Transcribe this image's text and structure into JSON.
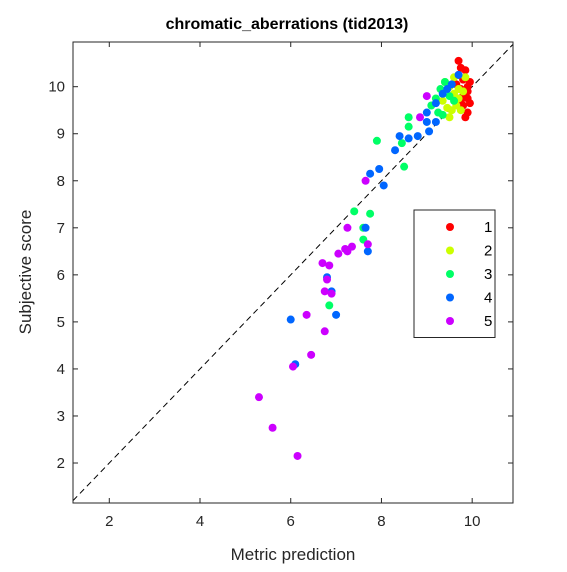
{
  "chart_data": {
    "type": "scatter",
    "title": "chromatic_aberrations (tid2013)",
    "xlabel": "Metric prediction",
    "ylabel": "Subjective score",
    "xlim": [
      1.2,
      10.9
    ],
    "ylim": [
      1.15,
      10.95
    ],
    "xticks": [
      2,
      4,
      6,
      8,
      10
    ],
    "yticks": [
      2,
      3,
      4,
      5,
      6,
      7,
      8,
      9,
      10
    ],
    "grid": false,
    "reference_line": {
      "style": "dashed",
      "from": [
        1.2,
        1.2
      ],
      "to": [
        10.9,
        10.9
      ]
    },
    "legend": {
      "position": "right-middle",
      "boxed": true
    },
    "series": [
      {
        "name": "1",
        "color": "#ff0000",
        "points": [
          [
            9.7,
            10.55
          ],
          [
            9.75,
            10.4
          ],
          [
            9.85,
            10.35
          ],
          [
            9.8,
            10.15
          ],
          [
            9.9,
            10.0
          ],
          [
            9.75,
            9.95
          ],
          [
            9.85,
            9.85
          ],
          [
            9.9,
            9.75
          ],
          [
            9.95,
            9.65
          ],
          [
            9.8,
            9.6
          ],
          [
            9.9,
            9.45
          ],
          [
            9.85,
            9.35
          ],
          [
            9.7,
            10.25
          ],
          [
            9.95,
            10.1
          ],
          [
            9.65,
            10.05
          ],
          [
            9.9,
            9.9
          ],
          [
            9.8,
            9.8
          ],
          [
            9.75,
            9.7
          ]
        ]
      },
      {
        "name": "2",
        "color": "#ccff00",
        "points": [
          [
            9.5,
            10.0
          ],
          [
            9.6,
            9.85
          ],
          [
            9.7,
            9.75
          ],
          [
            9.65,
            9.6
          ],
          [
            9.45,
            9.55
          ],
          [
            9.55,
            9.5
          ],
          [
            9.8,
            9.9
          ],
          [
            9.4,
            10.1
          ],
          [
            9.6,
            10.2
          ],
          [
            9.75,
            9.5
          ],
          [
            9.35,
            9.7
          ],
          [
            9.85,
            10.2
          ],
          [
            9.5,
            9.35
          ],
          [
            9.7,
            9.95
          ]
        ]
      },
      {
        "name": "3",
        "color": "#00ff66",
        "points": [
          [
            9.3,
            9.95
          ],
          [
            9.4,
            10.1
          ],
          [
            9.25,
            9.45
          ],
          [
            9.1,
            9.6
          ],
          [
            9.5,
            9.8
          ],
          [
            8.6,
            9.35
          ],
          [
            8.45,
            8.8
          ],
          [
            8.6,
            9.15
          ],
          [
            7.9,
            8.85
          ],
          [
            8.5,
            8.3
          ],
          [
            7.4,
            7.35
          ],
          [
            7.6,
            7.0
          ],
          [
            7.75,
            7.3
          ],
          [
            7.6,
            6.75
          ],
          [
            6.85,
            5.35
          ],
          [
            9.6,
            9.7
          ],
          [
            9.35,
            9.4
          ],
          [
            9.2,
            9.75
          ]
        ]
      },
      {
        "name": "4",
        "color": "#0066ff",
        "points": [
          [
            9.7,
            10.25
          ],
          [
            9.55,
            10.05
          ],
          [
            9.35,
            9.85
          ],
          [
            9.2,
            9.65
          ],
          [
            9.0,
            9.45
          ],
          [
            9.2,
            9.25
          ],
          [
            9.05,
            9.05
          ],
          [
            8.8,
            8.95
          ],
          [
            8.4,
            8.95
          ],
          [
            8.3,
            8.65
          ],
          [
            7.95,
            8.25
          ],
          [
            8.05,
            7.9
          ],
          [
            7.75,
            8.15
          ],
          [
            7.65,
            7.0
          ],
          [
            7.7,
            6.5
          ],
          [
            6.9,
            5.65
          ],
          [
            7.0,
            5.15
          ],
          [
            6.8,
            5.95
          ],
          [
            6.0,
            5.05
          ],
          [
            6.1,
            4.1
          ],
          [
            9.45,
            9.95
          ],
          [
            9.0,
            9.25
          ],
          [
            8.6,
            8.9
          ]
        ]
      },
      {
        "name": "5",
        "color": "#cc00ff",
        "points": [
          [
            9.0,
            9.8
          ],
          [
            8.85,
            9.35
          ],
          [
            7.65,
            8.0
          ],
          [
            7.25,
            7.0
          ],
          [
            7.35,
            6.6
          ],
          [
            7.2,
            6.55
          ],
          [
            7.05,
            6.45
          ],
          [
            7.7,
            6.65
          ],
          [
            6.7,
            6.25
          ],
          [
            6.85,
            6.2
          ],
          [
            6.8,
            5.9
          ],
          [
            6.75,
            5.65
          ],
          [
            6.75,
            4.8
          ],
          [
            6.35,
            5.15
          ],
          [
            6.45,
            4.3
          ],
          [
            6.05,
            4.05
          ],
          [
            5.3,
            3.4
          ],
          [
            5.6,
            2.75
          ],
          [
            6.15,
            2.15
          ],
          [
            7.25,
            6.5
          ],
          [
            6.9,
            5.6
          ]
        ]
      }
    ]
  }
}
